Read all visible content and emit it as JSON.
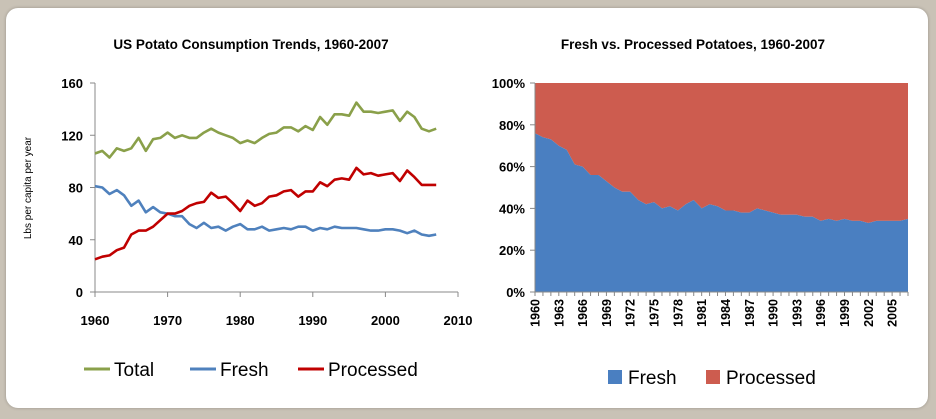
{
  "chart_data": [
    {
      "type": "line",
      "title": "US Potato Consumption Trends, 1960-2007",
      "xlabel": "",
      "ylabel": "Lbs per capita per year",
      "xlim": [
        1960,
        2010
      ],
      "ylim": [
        0,
        160
      ],
      "x_ticks": [
        1960,
        1970,
        1980,
        1990,
        2000,
        2010
      ],
      "y_ticks": [
        0,
        40,
        80,
        120,
        160
      ],
      "grid": false,
      "legend": "bottom",
      "x": [
        1960,
        1961,
        1962,
        1963,
        1964,
        1965,
        1966,
        1967,
        1968,
        1969,
        1970,
        1971,
        1972,
        1973,
        1974,
        1975,
        1976,
        1977,
        1978,
        1979,
        1980,
        1981,
        1982,
        1983,
        1984,
        1985,
        1986,
        1987,
        1988,
        1989,
        1990,
        1991,
        1992,
        1993,
        1994,
        1995,
        1996,
        1997,
        1998,
        1999,
        2000,
        2001,
        2002,
        2003,
        2004,
        2005,
        2006,
        2007
      ],
      "series": [
        {
          "name": "Total",
          "color": "#8aa04a",
          "values": [
            106,
            108,
            103,
            110,
            108,
            110,
            118,
            108,
            117,
            118,
            122,
            118,
            120,
            118,
            118,
            122,
            125,
            122,
            120,
            118,
            114,
            116,
            114,
            118,
            121,
            122,
            126,
            126,
            123,
            127,
            124,
            134,
            128,
            136,
            136,
            135,
            145,
            138,
            138,
            137,
            138,
            139,
            131,
            138,
            134,
            125,
            123,
            125
          ]
        },
        {
          "name": "Fresh",
          "color": "#4f81bd",
          "values": [
            81,
            80,
            75,
            78,
            74,
            66,
            70,
            61,
            65,
            61,
            60,
            58,
            58,
            52,
            49,
            53,
            49,
            50,
            47,
            50,
            52,
            48,
            48,
            50,
            47,
            48,
            49,
            48,
            50,
            50,
            47,
            49,
            48,
            50,
            49,
            49,
            49,
            48,
            47,
            47,
            48,
            48,
            47,
            45,
            47,
            44,
            43,
            44
          ]
        },
        {
          "name": "Processed",
          "color": "#c00000",
          "values": [
            25,
            27,
            28,
            32,
            34,
            44,
            47,
            47,
            50,
            55,
            60,
            60,
            62,
            66,
            68,
            69,
            76,
            72,
            73,
            68,
            62,
            70,
            66,
            68,
            73,
            74,
            77,
            78,
            73,
            77,
            77,
            84,
            81,
            86,
            87,
            86,
            95,
            90,
            91,
            89,
            90,
            91,
            85,
            93,
            88,
            82,
            82,
            82
          ]
        }
      ]
    },
    {
      "type": "area",
      "stacked": "percent",
      "title": "Fresh vs. Processed Potatoes, 1960-2007",
      "xlabel": "",
      "ylabel": "",
      "ylim": [
        0,
        100
      ],
      "y_ticks": [
        "0%",
        "20%",
        "40%",
        "60%",
        "80%",
        "100%"
      ],
      "x_tick_labels": [
        "1960",
        "1963",
        "1966",
        "1969",
        "1972",
        "1975",
        "1978",
        "1981",
        "1984",
        "1987",
        "1990",
        "1993",
        "1996",
        "1999",
        "2002",
        "2005"
      ],
      "grid": false,
      "legend": "bottom",
      "x": [
        1960,
        1961,
        1962,
        1963,
        1964,
        1965,
        1966,
        1967,
        1968,
        1969,
        1970,
        1971,
        1972,
        1973,
        1974,
        1975,
        1976,
        1977,
        1978,
        1979,
        1980,
        1981,
        1982,
        1983,
        1984,
        1985,
        1986,
        1987,
        1988,
        1989,
        1990,
        1991,
        1992,
        1993,
        1994,
        1995,
        1996,
        1997,
        1998,
        1999,
        2000,
        2001,
        2002,
        2003,
        2004,
        2005,
        2006,
        2007
      ],
      "series": [
        {
          "name": "Fresh",
          "color": "#4a7fc1",
          "values": [
            76,
            74,
            73,
            70,
            68,
            61,
            60,
            56,
            56,
            53,
            50,
            48,
            48,
            44,
            42,
            43,
            40,
            41,
            39,
            42,
            44,
            40,
            42,
            41,
            39,
            39,
            38,
            38,
            40,
            39,
            38,
            37,
            37,
            37,
            36,
            36,
            34,
            35,
            34,
            35,
            34,
            34,
            33,
            34,
            34,
            34,
            34,
            35
          ]
        },
        {
          "name": "Processed",
          "color": "#cd5c4f",
          "values": [
            24,
            26,
            27,
            30,
            32,
            39,
            40,
            44,
            44,
            47,
            50,
            52,
            52,
            56,
            58,
            57,
            60,
            59,
            61,
            58,
            56,
            60,
            58,
            59,
            61,
            61,
            62,
            62,
            60,
            61,
            62,
            63,
            63,
            63,
            64,
            64,
            66,
            65,
            66,
            65,
            66,
            66,
            67,
            66,
            66,
            66,
            66,
            65
          ]
        }
      ]
    }
  ]
}
